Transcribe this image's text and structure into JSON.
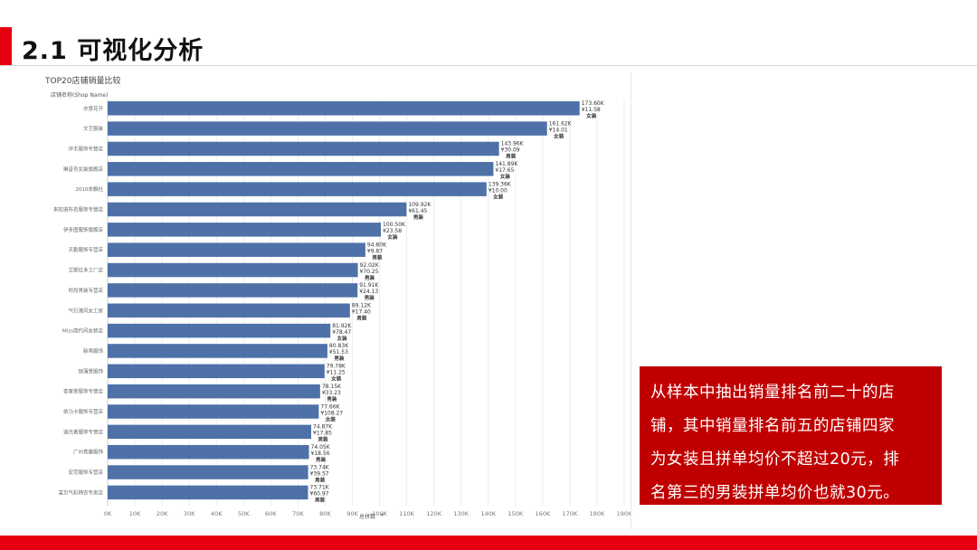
{
  "slide": {
    "title": "2.1 可视化分析",
    "callout": "从样本中抽出销量排名前二十的店\n铺，其中销量排名前五的店铺四家\n为女装且拼单均价不超过20元，排\n名第三的男装拼单均价也就30元。"
  },
  "colors": {
    "accent": "#e60012",
    "callout_bg": "#c00000",
    "bar": "#4e72a8"
  },
  "chart_data": {
    "type": "bar",
    "orientation": "horizontal",
    "title": "TOP20店铺销量比较",
    "ylabel": "店铺名称(Shop Name)",
    "xlabel": "总拼数",
    "xlim": [
      0,
      190000
    ],
    "xticks": [
      "0K",
      "10K",
      "20K",
      "30K",
      "40K",
      "50K",
      "60K",
      "70K",
      "80K",
      "90K",
      "100K",
      "110K",
      "120K",
      "130K",
      "140K",
      "150K",
      "160K",
      "170K",
      "180K",
      "190K"
    ],
    "grid": true,
    "categories": [
      "亦意花开",
      "文艺服装",
      "评丰服饰专营店",
      "琳音芳女装旗舰店",
      "2010衣橱社",
      "来知道布衣服饰专营店",
      "伊多图服饰旗舰店",
      "天勤服饰专营店",
      "艾斯拉多工厂店",
      "时尚男装专营店",
      "气衍港风女工房",
      "Miss简约风女装店",
      "新帛服饰",
      "硕蒲景服饰",
      "查客荣服饰专营店",
      "依马卡服饰专营店",
      "追光者服饰专营店",
      "广州青藤服饰",
      "宏范服饰专营店",
      "富贝气彩棉衣专卖店"
    ],
    "values": [
      173600,
      161620,
      143960,
      141890,
      139360,
      109920,
      100500,
      94800,
      92020,
      91910,
      89120,
      81920,
      80830,
      79780,
      78150,
      77660,
      74870,
      74050,
      73740,
      73710
    ],
    "value_labels": [
      "173.60K",
      "161.62K",
      "143.96K",
      "141.89K",
      "139.36K",
      "109.92K",
      "100.50K",
      "94.80K",
      "92.02K",
      "91.91K",
      "89.12K",
      "81.92K",
      "80.83K",
      "79.78K",
      "78.15K",
      "77.66K",
      "74.87K",
      "74.05K",
      "73.74K",
      "73.71K"
    ],
    "avg_price_labels": [
      "¥11.58",
      "¥14.01",
      "¥30.09",
      "¥17.65",
      "¥10.00",
      "¥61.45",
      "¥23.58",
      "¥9.87",
      "¥70.25",
      "¥24.13",
      "¥17.40",
      "¥78.47",
      "¥51.53",
      "¥11.25",
      "¥33.23",
      "¥108.27",
      "¥17.85",
      "¥18.56",
      "¥39.57",
      "¥60.97"
    ],
    "gender_labels": [
      "女装",
      "女装",
      "男装",
      "女装",
      "女装",
      "男装",
      "女装",
      "男装",
      "男装",
      "男装",
      "男装",
      "女装",
      "男装",
      "女装",
      "男装",
      "女装",
      "男装",
      "男装",
      "男装",
      "男装"
    ]
  }
}
